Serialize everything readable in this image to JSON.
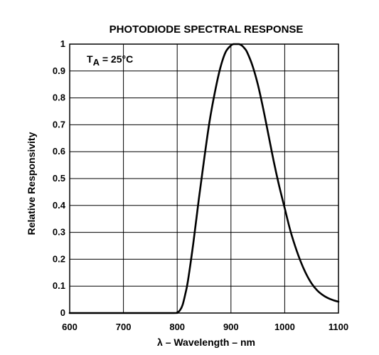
{
  "chart_data": {
    "type": "line",
    "title": "PHOTODIODE SPECTRAL RESPONSE",
    "xlabel": "λ – Wavelength – nm",
    "ylabel": "Relative Responsivity",
    "annotation": {
      "main": "T",
      "subscript": "A",
      "rest": " = 25°C"
    },
    "xlim": [
      600,
      1100
    ],
    "ylim": [
      0,
      1
    ],
    "x_ticks": [
      600,
      700,
      800,
      900,
      1000,
      1100
    ],
    "x_tick_labels": [
      "600",
      "700",
      "800",
      "900",
      "1000",
      "1100"
    ],
    "y_ticks": [
      0,
      0.1,
      0.2,
      0.3,
      0.4,
      0.5,
      0.6,
      0.7,
      0.8,
      0.9,
      1
    ],
    "y_tick_labels": [
      "0",
      "0.1",
      "0.2",
      "0.3",
      "0.4",
      "0.5",
      "0.6",
      "0.7",
      "0.8",
      "0.9",
      "1"
    ],
    "x_gridlines": [
      700,
      800,
      900,
      1000
    ],
    "y_gridlines": [
      0.1,
      0.2,
      0.3,
      0.4,
      0.5,
      0.6,
      0.7,
      0.8,
      0.9
    ],
    "grid": true,
    "series": [
      {
        "x": [
          600,
          700,
          790,
          800,
          805,
          810,
          815,
          820,
          830,
          840,
          850,
          860,
          870,
          880,
          890,
          900,
          905,
          910,
          915,
          920,
          925,
          930,
          940,
          950,
          960,
          970,
          980,
          990,
          1000,
          1010,
          1020,
          1030,
          1040,
          1050,
          1060,
          1070,
          1080,
          1090,
          1100
        ],
        "y": [
          0.0,
          0.0,
          0.0,
          0.002,
          0.01,
          0.03,
          0.07,
          0.12,
          0.26,
          0.42,
          0.57,
          0.71,
          0.82,
          0.91,
          0.97,
          0.995,
          1.0,
          1.0,
          1.0,
          0.995,
          0.985,
          0.97,
          0.92,
          0.85,
          0.76,
          0.66,
          0.56,
          0.47,
          0.39,
          0.31,
          0.245,
          0.19,
          0.145,
          0.11,
          0.085,
          0.068,
          0.056,
          0.048,
          0.042
        ],
        "color": "#000000"
      }
    ]
  }
}
